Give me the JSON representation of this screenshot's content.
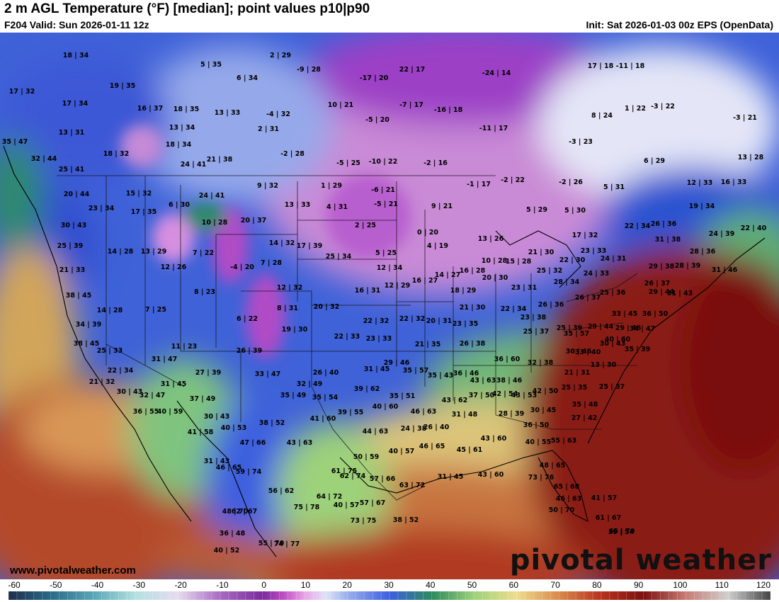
{
  "header": {
    "title": "2 m AGL Temperature (°F) [median]; point values p10|p90",
    "valid": "F204 Valid: Sun 2026-01-11 12z",
    "init": "Init: Sat 2026-01-03 00z EPS (OpenData)"
  },
  "watermark": {
    "url": "www.pivotalweather.com",
    "brand": "pivotal weather"
  },
  "colorbar": {
    "ticks": [
      "-60",
      "-50",
      "-40",
      "-30",
      "-20",
      "-10",
      "0",
      "10",
      "20",
      "30",
      "40",
      "50",
      "60",
      "70",
      "80",
      "90",
      "100",
      "110",
      "120"
    ],
    "min": -60,
    "max": 120,
    "stops": [
      {
        "v": -60,
        "c": "#1f2f4a"
      },
      {
        "v": -50,
        "c": "#2a6a8a"
      },
      {
        "v": -40,
        "c": "#59a6b6"
      },
      {
        "v": -30,
        "c": "#b3e0e0"
      },
      {
        "v": -20,
        "c": "#e6dcef"
      },
      {
        "v": -10,
        "c": "#a86bc2"
      },
      {
        "v": 0,
        "c": "#7b2a9e"
      },
      {
        "v": 5,
        "c": "#c04ec4"
      },
      {
        "v": 10,
        "c": "#e8a6e6"
      },
      {
        "v": 15,
        "c": "#dfe3f6"
      },
      {
        "v": 20,
        "c": "#9ab0ec"
      },
      {
        "v": 30,
        "c": "#3e5ee0"
      },
      {
        "v": 40,
        "c": "#2c8c5c"
      },
      {
        "v": 50,
        "c": "#9dd27a"
      },
      {
        "v": 60,
        "c": "#eedd8e"
      },
      {
        "v": 70,
        "c": "#d9894c"
      },
      {
        "v": 80,
        "c": "#b8321e"
      },
      {
        "v": 90,
        "c": "#7d1010"
      },
      {
        "v": 100,
        "c": "#c77c74"
      },
      {
        "v": 110,
        "c": "#cfcfcf"
      },
      {
        "v": 120,
        "c": "#444444"
      }
    ]
  },
  "point_values": [
    "18|34",
    "5|35",
    "2|29",
    "-9|28",
    "22|17",
    "-24|14",
    "17|18",
    "-11|18",
    "17|32",
    "19|35",
    "6|34",
    "-17|20",
    "17|34",
    "16|37",
    "18|35",
    "13|33",
    "-4|32",
    "10|21",
    "-7|17",
    "-16|18",
    "8|24",
    "1|22",
    "-3|22",
    "-3|21",
    "13|31",
    "13|34",
    "2|31",
    "-5|20",
    "-11|17",
    "-3|23",
    "35|47",
    "18|32",
    "18|34",
    "-2|28",
    "32|44",
    "21|38",
    "24|41",
    "-5|25",
    "-10|22",
    "-2|16",
    "6|29",
    "13|28",
    "25|41",
    "9|32",
    "1|29",
    "-1|17",
    "-2|22",
    "-2|26",
    "5|31",
    "12|33",
    "16|33",
    "20|44",
    "15|32",
    "6|30",
    "24|41",
    "-6|21",
    "19|34",
    "23|34",
    "17|35",
    "13|33",
    "4|31",
    "-5|21",
    "9|21",
    "5|29",
    "5|30",
    "30|43",
    "10|28",
    "20|37",
    "2|25",
    "22|34",
    "26|36",
    "24|39",
    "22|40",
    "0|20",
    "17|32",
    "31|38",
    "25|39",
    "14|28",
    "13|29",
    "14|32",
    "17|39",
    "4|19",
    "13|26",
    "23|33",
    "28|36",
    "7|22",
    "7|28",
    "5|25",
    "21|30",
    "25|34",
    "21|33",
    "12|26",
    "-4|20",
    "12|34",
    "10|28",
    "15|28",
    "22|30",
    "24|31",
    "29|38",
    "28|39",
    "31|46",
    "16|27",
    "14|27",
    "16|28",
    "25|32",
    "24|33",
    "38|45",
    "12|32",
    "16|31",
    "12|29",
    "18|29",
    "20|30",
    "23|31",
    "28|34",
    "25|36",
    "26|37",
    "29|44",
    "8|23",
    "31|43",
    "14|28",
    "7|25",
    "8|31",
    "20|32",
    "21|30",
    "22|34",
    "26|36",
    "26|37",
    "33|45",
    "36|50",
    "34|39",
    "6|22",
    "22|32",
    "22|32",
    "20|31",
    "23|35",
    "23|38",
    "25|37",
    "25|39",
    "29|44",
    "29|46",
    "34|47",
    "38|45",
    "19|30",
    "22|33",
    "23|33",
    "21|35",
    "26|38",
    "35|57",
    "40|60",
    "35|39",
    "25|33",
    "11|23",
    "26|39",
    "29|46",
    "30|46",
    "33|40",
    "30|43",
    "31|47",
    "36|60",
    "32|38",
    "13|30",
    "22|34",
    "27|39",
    "26|40",
    "31|45",
    "35|57",
    "35|43",
    "36|46",
    "21|31",
    "21|32",
    "31|45",
    "33|47",
    "32|49",
    "39|62",
    "43|63",
    "38|46",
    "42|50",
    "25|35",
    "25|37",
    "30|43",
    "32|47",
    "35|49",
    "35|54",
    "35|51",
    "43|62",
    "37|50",
    "42|54",
    "43|53",
    "35|48",
    "37|49",
    "36|55",
    "40|59",
    "40|60",
    "46|63",
    "31|48",
    "28|39",
    "30|45",
    "27|42",
    "30|43",
    "38|52",
    "39|55",
    "41|60",
    "40|53",
    "24|38",
    "26|40",
    "36|50",
    "41|58",
    "47|66",
    "43|63",
    "44|63",
    "46|65",
    "45|61",
    "43|60",
    "40|55",
    "55|63",
    "31|43",
    "40|57",
    "50|59",
    "48|65",
    "46|65",
    "61|75",
    "59|74",
    "62|74",
    "57|66",
    "63|72",
    "31|45",
    "43|60",
    "73|76",
    "65|68",
    "56|62",
    "64|72",
    "41|57",
    "46|63",
    "48|70",
    "40|57",
    "57|67",
    "50|70",
    "73|75",
    "62|67",
    "36|48",
    "38|52",
    "75|78",
    "61|67",
    "65|70",
    "40|52",
    "55|70",
    "74|77",
    "39|54"
  ]
}
